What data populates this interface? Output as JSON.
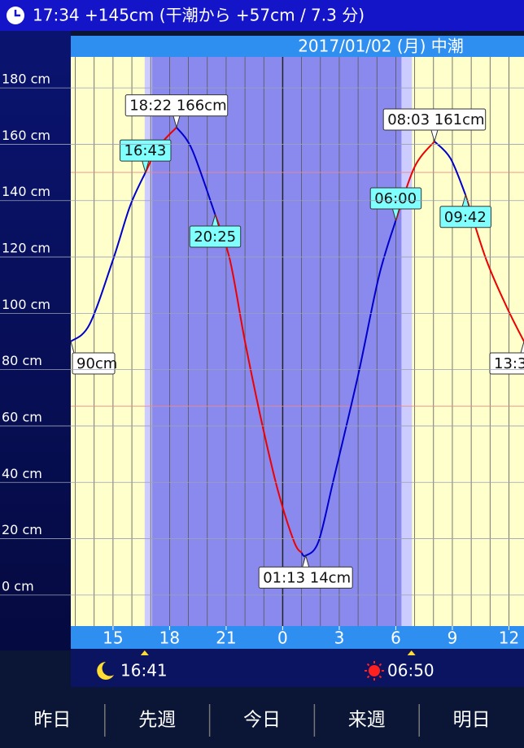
{
  "header": {
    "status": "17:34 +145cm (干潮から +57cm / 7.3 分)",
    "date": "2017/01/02 (月) 中潮"
  },
  "chart_data": {
    "type": "line",
    "x": [
      12.76,
      13.75,
      15,
      15.9,
      16.72,
      17.4,
      18.37,
      19.2,
      20.42,
      21.2,
      22,
      22.9,
      23.75,
      24.6,
      25.0,
      25.22,
      25.9,
      26.7,
      28,
      29.1,
      30,
      31,
      32.05,
      32.9,
      33.7,
      34.8,
      35.9,
      36.8
    ],
    "series": [
      {
        "color": "#0000cc",
        "values": [
          90,
          96,
          119,
          138,
          150,
          null,
          166,
          158,
          135,
          null,
          null,
          null,
          null,
          null,
          15,
          14,
          19,
          41,
          78,
          113,
          133,
          null,
          161,
          155,
          142,
          null,
          null,
          null
        ]
      },
      {
        "color": "#ee0000",
        "values": [
          null,
          null,
          null,
          null,
          150,
          159,
          166,
          null,
          135,
          119,
          90,
          61,
          37,
          19,
          15,
          null,
          null,
          null,
          null,
          null,
          133,
          152,
          161,
          null,
          142,
          119,
          102,
          90
        ]
      }
    ],
    "xlim": [
      12.76,
      36.8
    ],
    "xticks": [
      15,
      18,
      21,
      {
        "value": 24,
        "label": "0"
      },
      {
        "value": 27,
        "label": "3"
      },
      {
        "value": 30,
        "label": "6"
      },
      {
        "value": 33,
        "label": "9"
      },
      {
        "value": 36,
        "label": "12"
      }
    ],
    "ylim": [
      -11,
      191
    ],
    "yticks": [
      {
        "value": 0,
        "label": "0 cm"
      },
      {
        "value": 20,
        "label": "20 cm"
      },
      {
        "value": 40,
        "label": "40 cm"
      },
      {
        "value": 60,
        "label": "60 cm"
      },
      {
        "value": 80,
        "label": "80 cm"
      },
      {
        "value": 100,
        "label": "100 cm"
      },
      {
        "value": 120,
        "label": "120 cm"
      },
      {
        "value": 140,
        "label": "140 cm"
      },
      {
        "value": 160,
        "label": "160 cm"
      },
      {
        "value": 180,
        "label": "180 cm"
      }
    ],
    "reference_lines": [
      150,
      67
    ],
    "bands": [
      {
        "start": 16.68,
        "end": 30.86,
        "color": "#ccccff"
      },
      {
        "start": 17.07,
        "end": 30.3,
        "color": "#8a8aee"
      }
    ],
    "annotations": [
      {
        "text": "90cm",
        "x": 12.76,
        "y": 90,
        "style": "white",
        "position": "below-right"
      },
      {
        "text": "16:43",
        "x": 16.72,
        "y": 150,
        "style": "cyan",
        "position": "above"
      },
      {
        "text": "18:22 166cm",
        "x": 18.37,
        "y": 166,
        "style": "white",
        "position": "above"
      },
      {
        "text": "20:25",
        "x": 20.42,
        "y": 135,
        "style": "cyan",
        "position": "below"
      },
      {
        "text": "01:13 14cm",
        "x": 25.22,
        "y": 14,
        "style": "white",
        "position": "below"
      },
      {
        "text": "06:00",
        "x": 30,
        "y": 133,
        "style": "cyan",
        "position": "above"
      },
      {
        "text": "08:03 161cm",
        "x": 32.05,
        "y": 161,
        "style": "white",
        "position": "above"
      },
      {
        "text": "09:42",
        "x": 33.7,
        "y": 142,
        "style": "cyan",
        "position": "below"
      },
      {
        "text": "13:3",
        "x": 36.8,
        "y": 90,
        "style": "white",
        "position": "below-left"
      }
    ],
    "moonrise": {
      "label": "16:41",
      "x": 16.68
    },
    "sunrise": {
      "label": "06:50",
      "x": 30.83
    }
  },
  "nav": [
    "昨日",
    "先週",
    "今日",
    "来週",
    "明日"
  ]
}
